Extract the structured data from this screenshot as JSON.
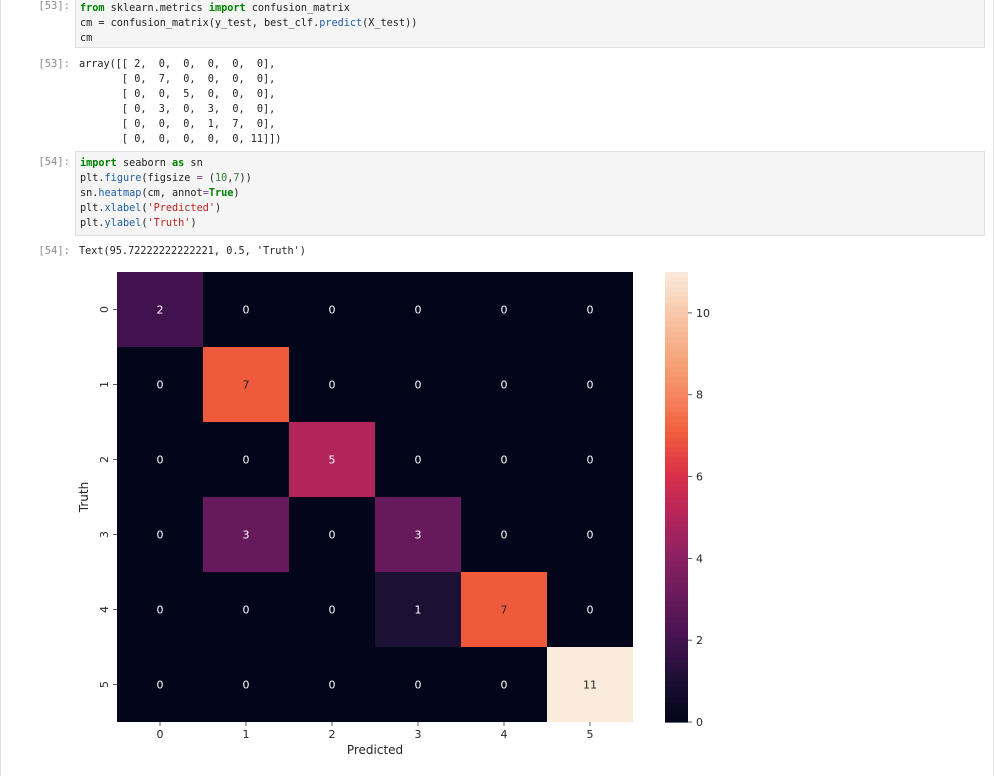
{
  "cells": {
    "c53_in": {
      "prompt": "[53]:",
      "l1_from": "from",
      "l1_mod": " sklearn.metrics ",
      "l1_import": "import",
      "l1_rest": " confusion_matrix",
      "l2_a": "cm = confusion_matrix(y_test, best_clf.",
      "l2_fn": "predict",
      "l2_b": "(X_test))",
      "l3": "cm"
    },
    "c53_out": {
      "prompt": "[53]:",
      "lines": [
        "array([[ 2,  0,  0,  0,  0,  0],",
        "       [ 0,  7,  0,  0,  0,  0],",
        "       [ 0,  0,  5,  0,  0,  0],",
        "       [ 0,  3,  0,  3,  0,  0],",
        "       [ 0,  0,  0,  1,  7,  0],",
        "       [ 0,  0,  0,  0,  0, 11]])"
      ]
    },
    "c54_in": {
      "prompt": "[54]:",
      "l1_import": "import",
      "l1_mid": " seaborn ",
      "l1_as": "as",
      "l1_rest": " sn",
      "l2_a": "plt.",
      "l2_fn": "figure",
      "l2_b": "(figsize ",
      "l2_eq": "=",
      "l2_c": " (",
      "l2_n1": "10",
      "l2_d": ",",
      "l2_n2": "7",
      "l2_e": "))",
      "l3_a": "sn.",
      "l3_fn": "heatmap",
      "l3_b": "(cm, annot",
      "l3_eq": "=",
      "l3_true": "True",
      "l3_c": ")",
      "l4_a": "plt.",
      "l4_fn": "xlabel",
      "l4_b": "(",
      "l4_str": "'Predicted'",
      "l4_c": ")",
      "l5_a": "plt.",
      "l5_fn": "ylabel",
      "l5_b": "(",
      "l5_str": "'Truth'",
      "l5_c": ")"
    },
    "c54_out": {
      "prompt": "[54]:",
      "text": "Text(95.72222222222221, 0.5, 'Truth')"
    }
  },
  "chart_data": {
    "type": "heatmap",
    "matrix": [
      [
        2,
        0,
        0,
        0,
        0,
        0
      ],
      [
        0,
        7,
        0,
        0,
        0,
        0
      ],
      [
        0,
        0,
        5,
        0,
        0,
        0
      ],
      [
        0,
        3,
        0,
        3,
        0,
        0
      ],
      [
        0,
        0,
        0,
        1,
        7,
        0
      ],
      [
        0,
        0,
        0,
        0,
        0,
        11
      ]
    ],
    "xticks": [
      "0",
      "1",
      "2",
      "3",
      "4",
      "5"
    ],
    "yticks": [
      "0",
      "1",
      "2",
      "3",
      "4",
      "5"
    ],
    "xlabel": "Predicted",
    "ylabel": "Truth",
    "colorbar_ticks": [
      0,
      2,
      4,
      6,
      8,
      10
    ],
    "vmin": 0,
    "vmax": 11,
    "colormap": "rocket",
    "annot_dark_color": "#ffffff",
    "annot_light_color": "#262626"
  }
}
